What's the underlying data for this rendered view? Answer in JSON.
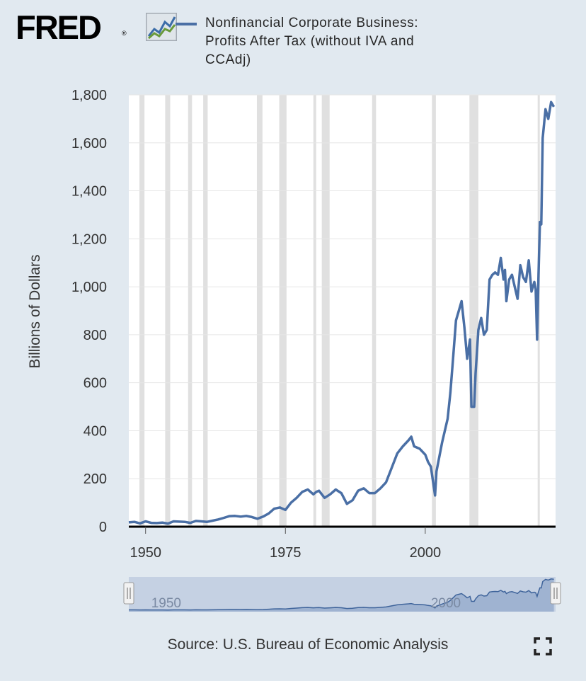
{
  "header": {
    "logo_text": "FRED",
    "logo_reg": "®",
    "series_label": "Nonfinancial Corporate Business: Profits After Tax (without IVA and CCAdj)"
  },
  "footer": {
    "source": "Source: U.S. Bureau of Economic Analysis"
  },
  "colors": {
    "series": "#4a6fa5",
    "background": "#e1e9f0",
    "plot_background": "#ffffff",
    "recession": "#e0e0e0"
  },
  "icons": [
    "fred-chart-icon",
    "fullscreen-icon",
    "range-handle-icon"
  ],
  "chart_data": {
    "type": "line",
    "title": "",
    "xlabel": "",
    "ylabel": "Billions of Dollars",
    "ylim": [
      0,
      1800
    ],
    "yticks": [
      "0",
      "200",
      "400",
      "600",
      "800",
      "1,000",
      "1,200",
      "1,400",
      "1,600",
      "1,800"
    ],
    "xticks": [
      "1950",
      "1975",
      "2000"
    ],
    "xlim": [
      1947,
      2023.3
    ],
    "grid": true,
    "legend": "top",
    "recessions": [
      [
        1948.9,
        1949.8
      ],
      [
        1953.5,
        1954.4
      ],
      [
        1957.6,
        1958.3
      ],
      [
        1960.3,
        1961.1
      ],
      [
        1969.9,
        1970.9
      ],
      [
        1973.9,
        1975.2
      ],
      [
        1980.0,
        1980.5
      ],
      [
        1981.5,
        1982.9
      ],
      [
        1990.5,
        1991.2
      ],
      [
        2001.2,
        2001.9
      ],
      [
        2007.9,
        2009.5
      ],
      [
        2020.1,
        2020.4
      ]
    ],
    "series": [
      {
        "x": [
          1947,
          1948,
          1949,
          1950,
          1951,
          1952,
          1953,
          1954,
          1955,
          1956,
          1957,
          1958,
          1959,
          1960,
          1961,
          1962,
          1963,
          1964,
          1965,
          1966,
          1967,
          1968,
          1969,
          1970,
          1971,
          1972,
          1973,
          1974,
          1975,
          1976,
          1977,
          1978,
          1979,
          1980,
          1980.5,
          1981,
          1982,
          1983,
          1984,
          1985,
          1986,
          1987,
          1988,
          1989,
          1990,
          1991,
          1992,
          1993,
          1994,
          1995,
          1996,
          1997,
          1997.5,
          1998,
          1999,
          2000,
          2000.5,
          2001,
          2001.75,
          2002,
          2003,
          2004,
          2004.5,
          2005,
          2005.5,
          2006,
          2006.5,
          2007,
          2007.5,
          2008,
          2008.25,
          2008.75,
          2009,
          2009.5,
          2010,
          2010.5,
          2011,
          2011.5,
          2012,
          2012.5,
          2013,
          2013.5,
          2014,
          2014.25,
          2014.5,
          2015,
          2015.5,
          2016,
          2016.5,
          2017,
          2017.5,
          2018,
          2018.5,
          2019,
          2019.5,
          2019.75,
          2020,
          2020.25,
          2020.5,
          2020.75,
          2021,
          2021.5,
          2022,
          2022.5,
          2023
        ],
        "values": [
          18,
          20,
          14,
          22,
          16,
          15,
          17,
          13,
          22,
          21,
          20,
          16,
          24,
          22,
          20,
          25,
          30,
          37,
          44,
          45,
          42,
          45,
          40,
          33,
          42,
          55,
          75,
          80,
          70,
          100,
          120,
          145,
          155,
          135,
          145,
          150,
          120,
          135,
          155,
          140,
          95,
          110,
          150,
          160,
          140,
          140,
          160,
          185,
          245,
          305,
          335,
          360,
          375,
          335,
          325,
          300,
          270,
          250,
          130,
          230,
          350,
          450,
          560,
          710,
          860,
          900,
          940,
          830,
          700,
          780,
          500,
          500,
          640,
          820,
          870,
          800,
          820,
          1030,
          1050,
          1060,
          1050,
          1120,
          1030,
          1070,
          940,
          1030,
          1050,
          1000,
          950,
          1090,
          1040,
          1020,
          1110,
          980,
          1020,
          990,
          780,
          1050,
          1270,
          1260,
          1620,
          1740,
          1700,
          1770,
          1750
        ]
      }
    ]
  }
}
